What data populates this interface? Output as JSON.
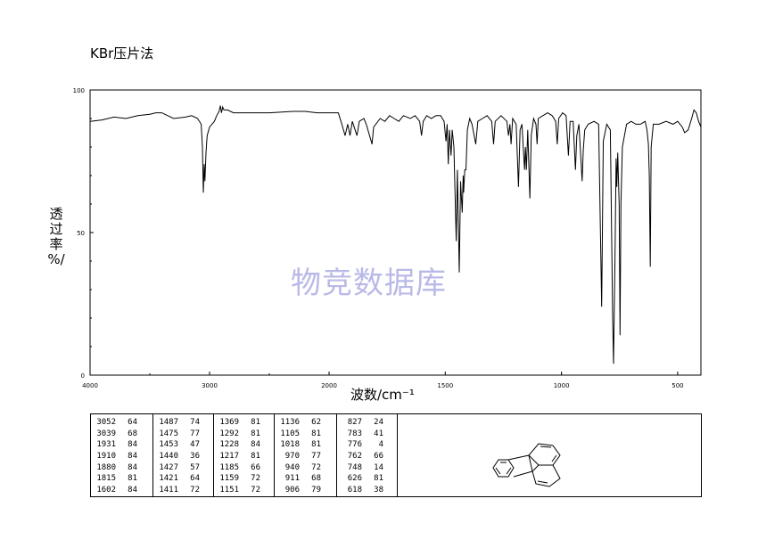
{
  "header": {
    "method": "KBr压片法"
  },
  "watermark": "物竞数据库",
  "chart_data": {
    "type": "line",
    "title": "",
    "xlabel": "波数/cm⁻¹",
    "ylabel": [
      "透",
      "过",
      "率",
      "%/"
    ],
    "xlim": [
      4000,
      400
    ],
    "ylim": [
      0,
      100
    ],
    "x_ticks": [
      4000,
      3000,
      2000,
      1500,
      1000,
      500
    ],
    "y_ticks": [
      0,
      50,
      100
    ],
    "grid": false,
    "series": [
      {
        "points": [
          [
            4000,
            89
          ],
          [
            3900,
            89.5
          ],
          [
            3800,
            90.5
          ],
          [
            3700,
            90
          ],
          [
            3600,
            91
          ],
          [
            3500,
            91.5
          ],
          [
            3450,
            92
          ],
          [
            3400,
            92
          ],
          [
            3350,
            91
          ],
          [
            3300,
            90
          ],
          [
            3200,
            90.5
          ],
          [
            3150,
            91
          ],
          [
            3100,
            90
          ],
          [
            3070,
            88
          ],
          [
            3060,
            80
          ],
          [
            3052,
            64
          ],
          [
            3045,
            74
          ],
          [
            3039,
            68
          ],
          [
            3030,
            78
          ],
          [
            3020,
            84
          ],
          [
            3000,
            87
          ],
          [
            2960,
            89
          ],
          [
            2940,
            91
          ],
          [
            2920,
            92.5
          ],
          [
            2910,
            94.5
          ],
          [
            2900,
            92
          ],
          [
            2890,
            94
          ],
          [
            2880,
            93
          ],
          [
            2850,
            93
          ],
          [
            2800,
            92
          ],
          [
            2700,
            92
          ],
          [
            2500,
            92
          ],
          [
            2300,
            92.5
          ],
          [
            2200,
            92.5
          ],
          [
            2100,
            92
          ],
          [
            2000,
            92
          ],
          [
            1960,
            92
          ],
          [
            1945,
            88
          ],
          [
            1931,
            84
          ],
          [
            1920,
            88
          ],
          [
            1910,
            84
          ],
          [
            1900,
            89
          ],
          [
            1880,
            84
          ],
          [
            1870,
            89
          ],
          [
            1850,
            90
          ],
          [
            1840,
            88
          ],
          [
            1815,
            81
          ],
          [
            1808,
            87
          ],
          [
            1780,
            90
          ],
          [
            1760,
            89
          ],
          [
            1740,
            91
          ],
          [
            1720,
            90
          ],
          [
            1700,
            89
          ],
          [
            1680,
            91
          ],
          [
            1650,
            90
          ],
          [
            1630,
            91
          ],
          [
            1610,
            89
          ],
          [
            1602,
            84
          ],
          [
            1595,
            89
          ],
          [
            1580,
            91
          ],
          [
            1560,
            90
          ],
          [
            1540,
            91
          ],
          [
            1520,
            91
          ],
          [
            1505,
            89
          ],
          [
            1497,
            82
          ],
          [
            1492,
            88
          ],
          [
            1487,
            74
          ],
          [
            1482,
            86
          ],
          [
            1475,
            77
          ],
          [
            1470,
            86
          ],
          [
            1463,
            80
          ],
          [
            1453,
            47
          ],
          [
            1448,
            72
          ],
          [
            1440,
            36
          ],
          [
            1434,
            68
          ],
          [
            1427,
            57
          ],
          [
            1423,
            70
          ],
          [
            1421,
            64
          ],
          [
            1416,
            72
          ],
          [
            1411,
            72
          ],
          [
            1405,
            86
          ],
          [
            1395,
            90
          ],
          [
            1385,
            88
          ],
          [
            1369,
            81
          ],
          [
            1360,
            89
          ],
          [
            1340,
            90
          ],
          [
            1320,
            91
          ],
          [
            1300,
            89
          ],
          [
            1292,
            81
          ],
          [
            1285,
            89
          ],
          [
            1260,
            91
          ],
          [
            1235,
            89
          ],
          [
            1228,
            84
          ],
          [
            1222,
            88
          ],
          [
            1217,
            81
          ],
          [
            1210,
            90
          ],
          [
            1195,
            88
          ],
          [
            1185,
            66
          ],
          [
            1178,
            86
          ],
          [
            1170,
            88
          ],
          [
            1159,
            72
          ],
          [
            1155,
            80
          ],
          [
            1151,
            72
          ],
          [
            1145,
            86
          ],
          [
            1136,
            62
          ],
          [
            1130,
            84
          ],
          [
            1120,
            90
          ],
          [
            1110,
            88
          ],
          [
            1105,
            81
          ],
          [
            1100,
            90
          ],
          [
            1080,
            91
          ],
          [
            1060,
            92
          ],
          [
            1040,
            91
          ],
          [
            1025,
            89
          ],
          [
            1018,
            81
          ],
          [
            1012,
            90
          ],
          [
            995,
            92
          ],
          [
            980,
            91
          ],
          [
            970,
            77
          ],
          [
            963,
            89
          ],
          [
            950,
            89
          ],
          [
            940,
            72
          ],
          [
            934,
            84
          ],
          [
            925,
            88
          ],
          [
            911,
            68
          ],
          [
            908,
            75
          ],
          [
            906,
            79
          ],
          [
            900,
            86
          ],
          [
            885,
            88
          ],
          [
            860,
            89
          ],
          [
            840,
            88
          ],
          [
            827,
            24
          ],
          [
            820,
            82
          ],
          [
            805,
            88
          ],
          [
            790,
            86
          ],
          [
            783,
            41
          ],
          [
            780,
            20
          ],
          [
            776,
            4
          ],
          [
            770,
            40
          ],
          [
            765,
            76
          ],
          [
            762,
            66
          ],
          [
            758,
            78
          ],
          [
            752,
            60
          ],
          [
            748,
            14
          ],
          [
            744,
            60
          ],
          [
            738,
            80
          ],
          [
            720,
            88
          ],
          [
            700,
            89
          ],
          [
            680,
            88
          ],
          [
            660,
            88
          ],
          [
            640,
            89
          ],
          [
            632,
            86
          ],
          [
            626,
            81
          ],
          [
            622,
            70
          ],
          [
            618,
            38
          ],
          [
            614,
            80
          ],
          [
            605,
            88
          ],
          [
            580,
            88
          ],
          [
            550,
            89
          ],
          [
            520,
            88
          ],
          [
            500,
            89
          ],
          [
            480,
            87
          ],
          [
            470,
            85
          ],
          [
            455,
            86
          ],
          [
            440,
            90
          ],
          [
            430,
            93
          ],
          [
            420,
            92
          ],
          [
            410,
            89
          ],
          [
            400,
            87
          ]
        ]
      }
    ]
  },
  "peak_table": {
    "columns": [
      [
        [
          "3052",
          "64"
        ],
        [
          "3039",
          "68"
        ],
        [
          "1931",
          "84"
        ],
        [
          "1910",
          "84"
        ],
        [
          "1880",
          "84"
        ],
        [
          "1815",
          "81"
        ],
        [
          "1602",
          "84"
        ]
      ],
      [
        [
          "1487",
          "74"
        ],
        [
          "1475",
          "77"
        ],
        [
          "1453",
          "47"
        ],
        [
          "1440",
          "36"
        ],
        [
          "1427",
          "57"
        ],
        [
          "1421",
          "64"
        ],
        [
          "1411",
          "72"
        ]
      ],
      [
        [
          "1369",
          "81"
        ],
        [
          "1292",
          "81"
        ],
        [
          "1228",
          "84"
        ],
        [
          "1217",
          "81"
        ],
        [
          "1185",
          "66"
        ],
        [
          "1159",
          "72"
        ],
        [
          "1151",
          "72"
        ]
      ],
      [
        [
          "1136",
          "62"
        ],
        [
          "1105",
          "81"
        ],
        [
          "1018",
          "81"
        ],
        [
          "970",
          "77"
        ],
        [
          "940",
          "72"
        ],
        [
          "911",
          "68"
        ],
        [
          "906",
          "79"
        ]
      ],
      [
        [
          "827",
          "24"
        ],
        [
          "783",
          "41"
        ],
        [
          "776",
          "4"
        ],
        [
          "762",
          "66"
        ],
        [
          "748",
          "14"
        ],
        [
          "626",
          "81"
        ],
        [
          "618",
          "38"
        ]
      ]
    ]
  },
  "structure": {
    "compound_icon": "fluoranthene-structure-icon"
  }
}
